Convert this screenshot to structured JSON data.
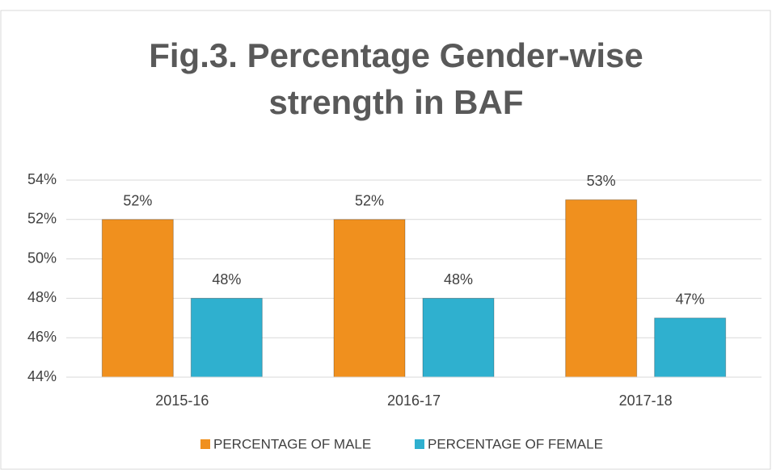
{
  "chart_data": {
    "type": "bar",
    "title": "Fig.3. Percentage Gender-wise strength in BAF",
    "categories": [
      "2015-16",
      "2016-17",
      "2017-18"
    ],
    "series": [
      {
        "name": "PERCENTAGE OF MALE",
        "color": "#f0901e",
        "values": [
          52,
          52,
          53
        ],
        "value_labels": [
          "52%",
          "52%",
          "53%"
        ]
      },
      {
        "name": "PERCENTAGE OF FEMALE",
        "color": "#2fb0cf",
        "values": [
          48,
          48,
          47
        ],
        "value_labels": [
          "48%",
          "48%",
          "47%"
        ]
      }
    ],
    "ylim": [
      44,
      54
    ],
    "yticks": [
      {
        "value": 44,
        "label": "44%"
      },
      {
        "value": 46,
        "label": "46%"
      },
      {
        "value": 48,
        "label": "48%"
      },
      {
        "value": 50,
        "label": "50%"
      },
      {
        "value": 52,
        "label": "52%"
      },
      {
        "value": 54,
        "label": "54%"
      }
    ],
    "grid": true,
    "legend": "bottom"
  }
}
